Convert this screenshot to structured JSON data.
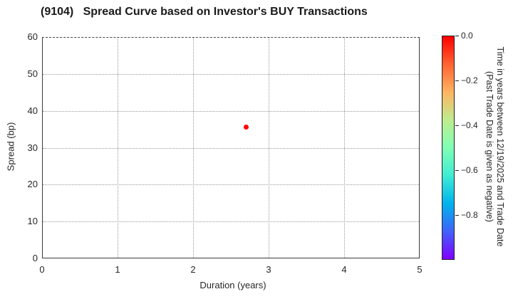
{
  "title": "(9104)   Spread Curve based on Investor's BUY Transactions",
  "chart_data": {
    "type": "scatter",
    "title": "(9104)   Spread Curve based on Investor's BUY Transactions",
    "xlabel": "Duration (years)",
    "ylabel": "Spread (bp)",
    "xlim": [
      0,
      5
    ],
    "ylim": [
      0,
      60
    ],
    "xticks": [
      0,
      1,
      2,
      3,
      4,
      5
    ],
    "yticks": [
      0,
      10,
      20,
      30,
      40,
      50,
      60
    ],
    "grid": true,
    "grid_style": "dotted",
    "points": [
      {
        "duration_years": 2.7,
        "spread_bp": 35.6,
        "time_years": 0.0,
        "color": "#ff0000"
      }
    ],
    "colorbar": {
      "label_line1": "Time in years between 12/19/2025 and Trade Date",
      "label_line2": "(Past Trade Date is given as negative)",
      "range": [
        0.0,
        -1.0
      ],
      "tick_values": [
        0.0,
        -0.2,
        -0.4,
        -0.6,
        -0.8
      ],
      "tick_labels": [
        "0.0",
        "−0.2",
        "−0.4",
        "−0.6",
        "−0.8"
      ],
      "colormap": "rainbow",
      "gradient_top_to_bottom": [
        "#ff0000",
        "#ff6232",
        "#ffb462",
        "#bfec8e",
        "#80ffb4",
        "#40ecd4",
        "#00b4ec",
        "#4062fa",
        "#8000ff"
      ]
    }
  },
  "colors": {
    "point": "#ff0000",
    "grid": "#9a9a9a",
    "axis": "#3a3a3a",
    "text": "#262626"
  }
}
